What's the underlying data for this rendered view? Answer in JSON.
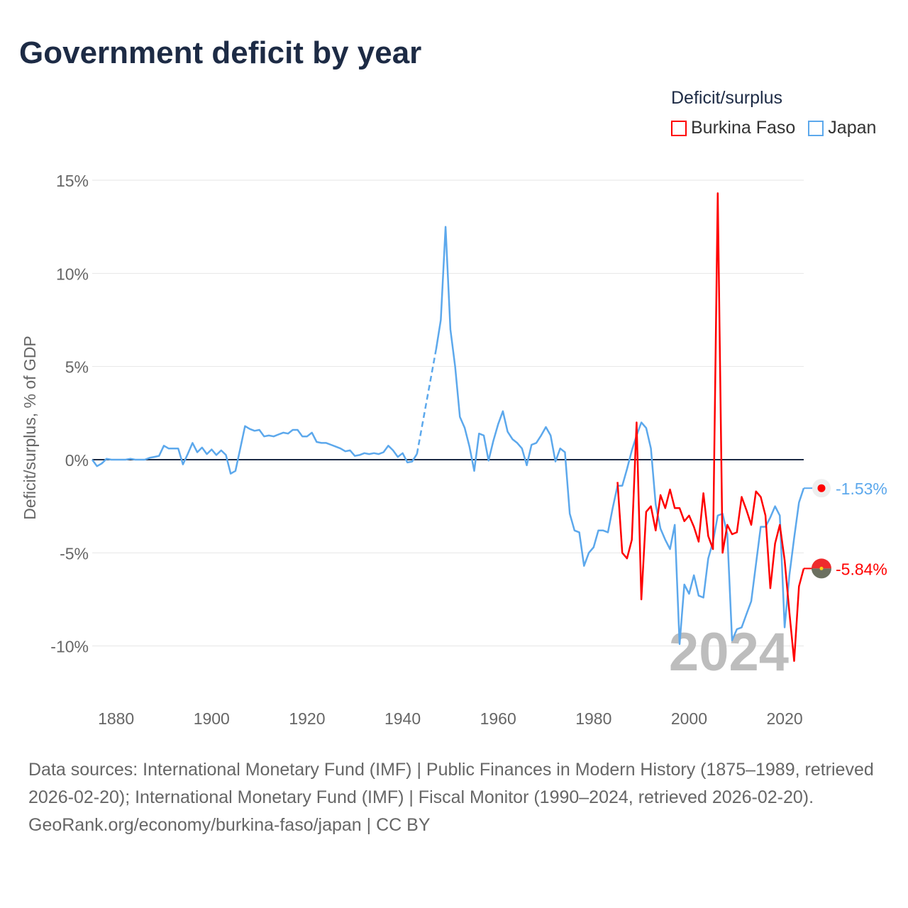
{
  "title": "Government deficit by year",
  "legend": {
    "title": "Deficit/surplus",
    "items": [
      {
        "label": "Burkina Faso",
        "color": "#ff0000"
      },
      {
        "label": "Japan",
        "color": "#5ca8ec"
      }
    ]
  },
  "footer": {
    "sources": "Data sources: International Monetary Fund (IMF) | Public Finances in Modern History (1875–1989, retrieved 2026-02-20); International Monetary Fund (IMF) | Fiscal Monitor (1990–2024, retrieved 2026-02-20).",
    "credit": "GeoRank.org/economy/burkina-faso/japan | CC BY"
  },
  "chart_data": {
    "type": "line",
    "title": "Government deficit by year",
    "xlabel": "",
    "ylabel": "Deficit/surplus, % of GDP",
    "xlim": [
      1875,
      2024
    ],
    "ylim": [
      -12.5,
      15
    ],
    "yticks": [
      15,
      10,
      5,
      0,
      -5,
      -10
    ],
    "ytick_labels": [
      "15%",
      "10%",
      "5%",
      "0%",
      "-5%",
      "-10%"
    ],
    "xticks": [
      1880,
      1900,
      1920,
      1940,
      1960,
      1980,
      2000,
      2020
    ],
    "xtick_labels": [
      "1880",
      "1900",
      "1920",
      "1940",
      "1960",
      "1980",
      "2000",
      "2020"
    ],
    "grid": true,
    "year_watermark": "2024",
    "series": [
      {
        "name": "Japan",
        "color": "#5ca8ec",
        "start_year": 1875,
        "end_label": "-1.53%",
        "values": [
          0,
          -0.35,
          -0.2,
          0.05,
          0,
          0,
          0,
          0,
          0.05,
          0,
          0,
          0,
          0.1,
          0.15,
          0.2,
          0.75,
          0.6,
          0.6,
          0.6,
          -0.25,
          0.3,
          0.9,
          0.4,
          0.65,
          0.3,
          0.55,
          0.25,
          0.5,
          0.25,
          -0.75,
          -0.6,
          0.6,
          1.8,
          1.65,
          1.55,
          1.6,
          1.25,
          1.3,
          1.25,
          1.35,
          1.45,
          1.4,
          1.6,
          1.6,
          1.25,
          1.25,
          1.45,
          0.95,
          0.9,
          0.9,
          0.8,
          0.7,
          0.6,
          0.45,
          0.5,
          0.2,
          0.25,
          0.35,
          0.3,
          0.35,
          0.3,
          0.4,
          0.75,
          0.5,
          0.15,
          0.35,
          -0.15,
          -0.1,
          0.3,
          null,
          null,
          null,
          5.9,
          7.5,
          12.5,
          7.0,
          5.0,
          2.3,
          1.7,
          0.7,
          -0.6,
          1.4,
          1.3,
          -0.05,
          1.0,
          1.9,
          2.6,
          1.5,
          1.1,
          0.9,
          0.6,
          -0.3,
          0.8,
          0.9,
          1.3,
          1.75,
          1.3,
          -0.1,
          0.6,
          0.4,
          -2.9,
          -3.8,
          -3.9,
          -5.7,
          -5.0,
          -4.7,
          -3.8,
          -3.8,
          -3.9,
          -2.6,
          -1.4,
          -1.4,
          -0.5,
          0.5,
          1.3,
          2.0,
          1.7,
          0.6,
          -2.4,
          -3.7,
          -4.3,
          -4.8,
          -3.5,
          -9.9,
          -6.7,
          -7.2,
          -6.2,
          -7.3,
          -7.4,
          -5.3,
          -4.4,
          -3.0,
          -2.9,
          -4.0,
          -9.7,
          -9.1,
          -9.0,
          -8.3,
          -7.6,
          -5.6,
          -3.6,
          -3.6,
          -3.1,
          -2.5,
          -3.0,
          -9.0,
          -6.2,
          -4.2,
          -2.3,
          -1.53
        ]
      },
      {
        "name": "Burkina Faso",
        "color": "#ff0000",
        "start_year": 1985,
        "end_label": "-5.84%",
        "values": [
          -1.2,
          -5.0,
          -5.3,
          -4.3,
          2.0,
          -7.5,
          -2.8,
          -2.5,
          -3.8,
          -1.9,
          -2.6,
          -1.6,
          -2.6,
          -2.6,
          -3.3,
          -3.0,
          -3.6,
          -4.4,
          -1.8,
          -4.1,
          -4.8,
          14.3,
          -5.0,
          -3.5,
          -4.0,
          -3.9,
          -2.0,
          -2.7,
          -3.5,
          -1.7,
          -2.0,
          -3.0,
          -6.9,
          -4.5,
          -3.5,
          -5.4,
          -8.2,
          -10.8,
          -6.8,
          -5.84
        ]
      }
    ]
  }
}
